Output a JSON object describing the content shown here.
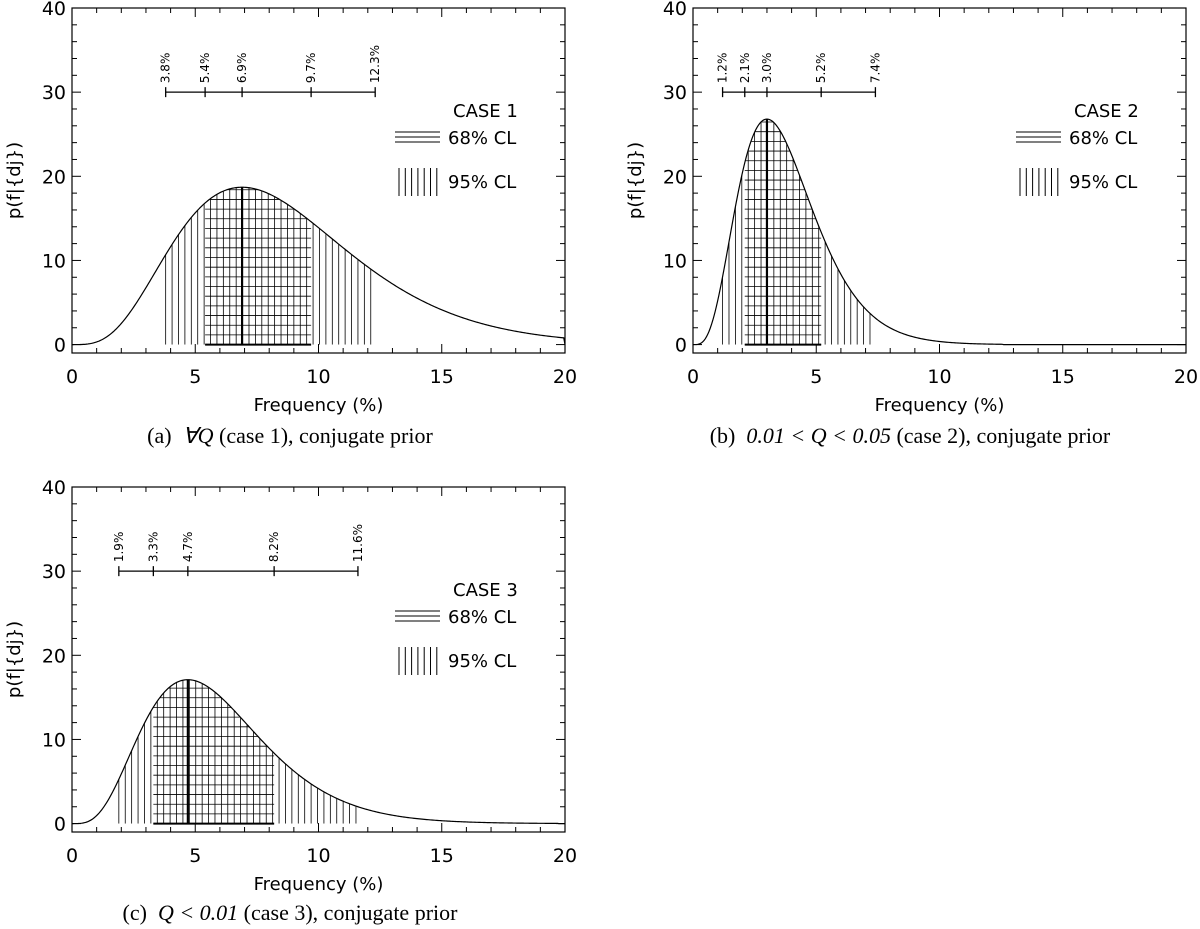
{
  "colors": {
    "ink": "#000000",
    "background": "#ffffff"
  },
  "chart_data": [
    {
      "type": "area",
      "panel": "a",
      "caption_label": "(a)",
      "caption_math": "∀Q",
      "caption_rest": " (case 1), conjugate prior",
      "case_label": "CASE 1",
      "legend": [
        "68% CL",
        "95% CL"
      ],
      "xlabel": "Frequency (%)",
      "ylabel": "p(f|{dj})",
      "xlim": [
        0,
        20
      ],
      "ylim": [
        -1,
        40
      ],
      "xticks": [
        0,
        5,
        10,
        15,
        20
      ],
      "yticks": [
        0,
        10,
        20,
        30,
        40
      ],
      "mode": 6.9,
      "peak": 18.7,
      "cl68": [
        5.4,
        9.7
      ],
      "cl95": [
        3.8,
        12.3
      ],
      "marker_values": [
        3.8,
        5.4,
        6.9,
        9.7,
        12.3
      ],
      "marker_labels": [
        "3.8%",
        "5.4%",
        "6.9%",
        "9.7%",
        "12.3%"
      ],
      "marker_bar_y": 30
    },
    {
      "type": "area",
      "panel": "b",
      "caption_label": "(b)",
      "caption_math": "0.01 < Q < 0.05",
      "caption_rest": " (case 2), conjugate prior",
      "case_label": "CASE 2",
      "legend": [
        "68% CL",
        "95% CL"
      ],
      "xlabel": "Frequency (%)",
      "ylabel": "p(f|{dj})",
      "xlim": [
        0,
        20
      ],
      "ylim": [
        -1,
        40
      ],
      "xticks": [
        0,
        5,
        10,
        15,
        20
      ],
      "yticks": [
        0,
        10,
        20,
        30,
        40
      ],
      "mode": 3.0,
      "peak": 26.8,
      "cl68": [
        2.1,
        5.2
      ],
      "cl95": [
        1.2,
        7.4
      ],
      "marker_values": [
        1.2,
        2.1,
        3.0,
        5.2,
        7.4
      ],
      "marker_labels": [
        "1.2%",
        "2.1%",
        "3.0%",
        "5.2%",
        "7.4%"
      ],
      "marker_bar_y": 30
    },
    {
      "type": "area",
      "panel": "c",
      "caption_label": "(c)",
      "caption_math": "Q < 0.01",
      "caption_rest": " (case 3), conjugate prior",
      "case_label": "CASE 3",
      "legend": [
        "68% CL",
        "95% CL"
      ],
      "xlabel": "Frequency (%)",
      "ylabel": "p(f|{dj})",
      "xlim": [
        0,
        20
      ],
      "ylim": [
        -1,
        40
      ],
      "xticks": [
        0,
        5,
        10,
        15,
        20
      ],
      "yticks": [
        0,
        10,
        20,
        30,
        40
      ],
      "mode": 4.7,
      "peak": 17.1,
      "cl68": [
        3.3,
        8.2
      ],
      "cl95": [
        1.9,
        11.6
      ],
      "marker_values": [
        1.9,
        3.3,
        4.7,
        8.2,
        11.6
      ],
      "marker_labels": [
        "1.9%",
        "3.3%",
        "4.7%",
        "8.2%",
        "11.6%"
      ],
      "marker_bar_y": 30
    }
  ]
}
